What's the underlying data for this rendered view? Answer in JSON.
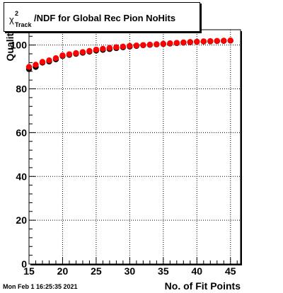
{
  "title": {
    "math_symbol": "χ",
    "math_sup": "2",
    "math_sub": "Track",
    "text": "/NDF for Global Rec Pion NoHits"
  },
  "footer_date": "Mon Feb  1 16:25:35 2021",
  "chart_data": {
    "type": "scatter",
    "xlabel": "No. of Fit Points",
    "ylabel": "Quality",
    "xlim": [
      15,
      46.5
    ],
    "ylim": [
      0,
      107
    ],
    "grid": true,
    "x_ticks": [
      15,
      20,
      25,
      30,
      35,
      40,
      45
    ],
    "y_ticks": [
      0,
      20,
      40,
      60,
      80,
      100
    ],
    "series": [
      {
        "color": "#000000",
        "x": [
          15,
          16,
          17,
          18,
          19,
          20,
          21,
          22,
          23,
          24,
          25,
          26,
          27,
          28,
          29,
          30,
          31,
          32,
          33,
          34,
          35,
          36,
          37,
          38,
          39,
          40,
          41,
          42,
          43,
          44,
          45
        ],
        "y": [
          89.0,
          90.0,
          92.0,
          92.5,
          93.5,
          95.0,
          95.5,
          96.0,
          96.5,
          97.0,
          97.5,
          97.8,
          98.2,
          98.6,
          99.0,
          99.3,
          99.6,
          99.9,
          100.1,
          100.3,
          100.5,
          100.7,
          100.9,
          101.1,
          101.3,
          101.5,
          101.6,
          101.7,
          101.8,
          101.9,
          102.0
        ]
      },
      {
        "color": "#ff0000",
        "x": [
          15,
          16,
          17,
          18,
          19,
          20,
          21,
          22,
          23,
          24,
          25,
          26,
          27,
          28,
          29,
          30,
          31,
          32,
          33,
          34,
          35,
          36,
          37,
          38,
          39,
          40,
          41,
          42,
          43,
          44,
          45
        ],
        "y": [
          90.0,
          91.0,
          92.3,
          93.0,
          94.0,
          95.3,
          95.8,
          96.3,
          96.8,
          97.3,
          97.9,
          98.3,
          98.7,
          99.0,
          99.3,
          99.6,
          99.8,
          100.0,
          100.2,
          100.4,
          100.6,
          100.8,
          101.0,
          101.2,
          101.4,
          101.5,
          101.7,
          101.8,
          101.9,
          102.0,
          102.1
        ]
      }
    ]
  }
}
